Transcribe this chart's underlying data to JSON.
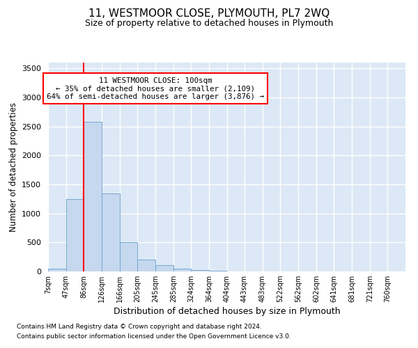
{
  "title": "11, WESTMOOR CLOSE, PLYMOUTH, PL7 2WQ",
  "subtitle": "Size of property relative to detached houses in Plymouth",
  "xlabel": "Distribution of detached houses by size in Plymouth",
  "ylabel": "Number of detached properties",
  "bar_color": "#c5d8ee",
  "bar_edge_color": "#6a9fcb",
  "plot_bg_color": "#dce8f5",
  "annotation_line1": "11 WESTMOOR CLOSE: 100sqm",
  "annotation_line2": "← 35% of detached houses are smaller (2,109)",
  "annotation_line3": "64% of semi-detached houses are larger (3,876) →",
  "red_line_x": 86,
  "footnote1": "Contains HM Land Registry data © Crown copyright and database right 2024.",
  "footnote2": "Contains public sector information licensed under the Open Government Licence v3.0.",
  "bins": [
    7,
    47,
    86,
    126,
    166,
    205,
    245,
    285,
    324,
    364,
    404,
    443,
    483,
    522,
    562,
    602,
    641,
    681,
    721,
    760,
    800
  ],
  "counts": [
    50,
    1250,
    2580,
    1350,
    500,
    200,
    110,
    50,
    20,
    10,
    5,
    3,
    2,
    0,
    0,
    0,
    0,
    0,
    0,
    0
  ],
  "ylim_max": 3600,
  "yticks": [
    0,
    500,
    1000,
    1500,
    2000,
    2500,
    3000,
    3500
  ],
  "fig_width": 6.0,
  "fig_height": 5.0,
  "dpi": 100
}
